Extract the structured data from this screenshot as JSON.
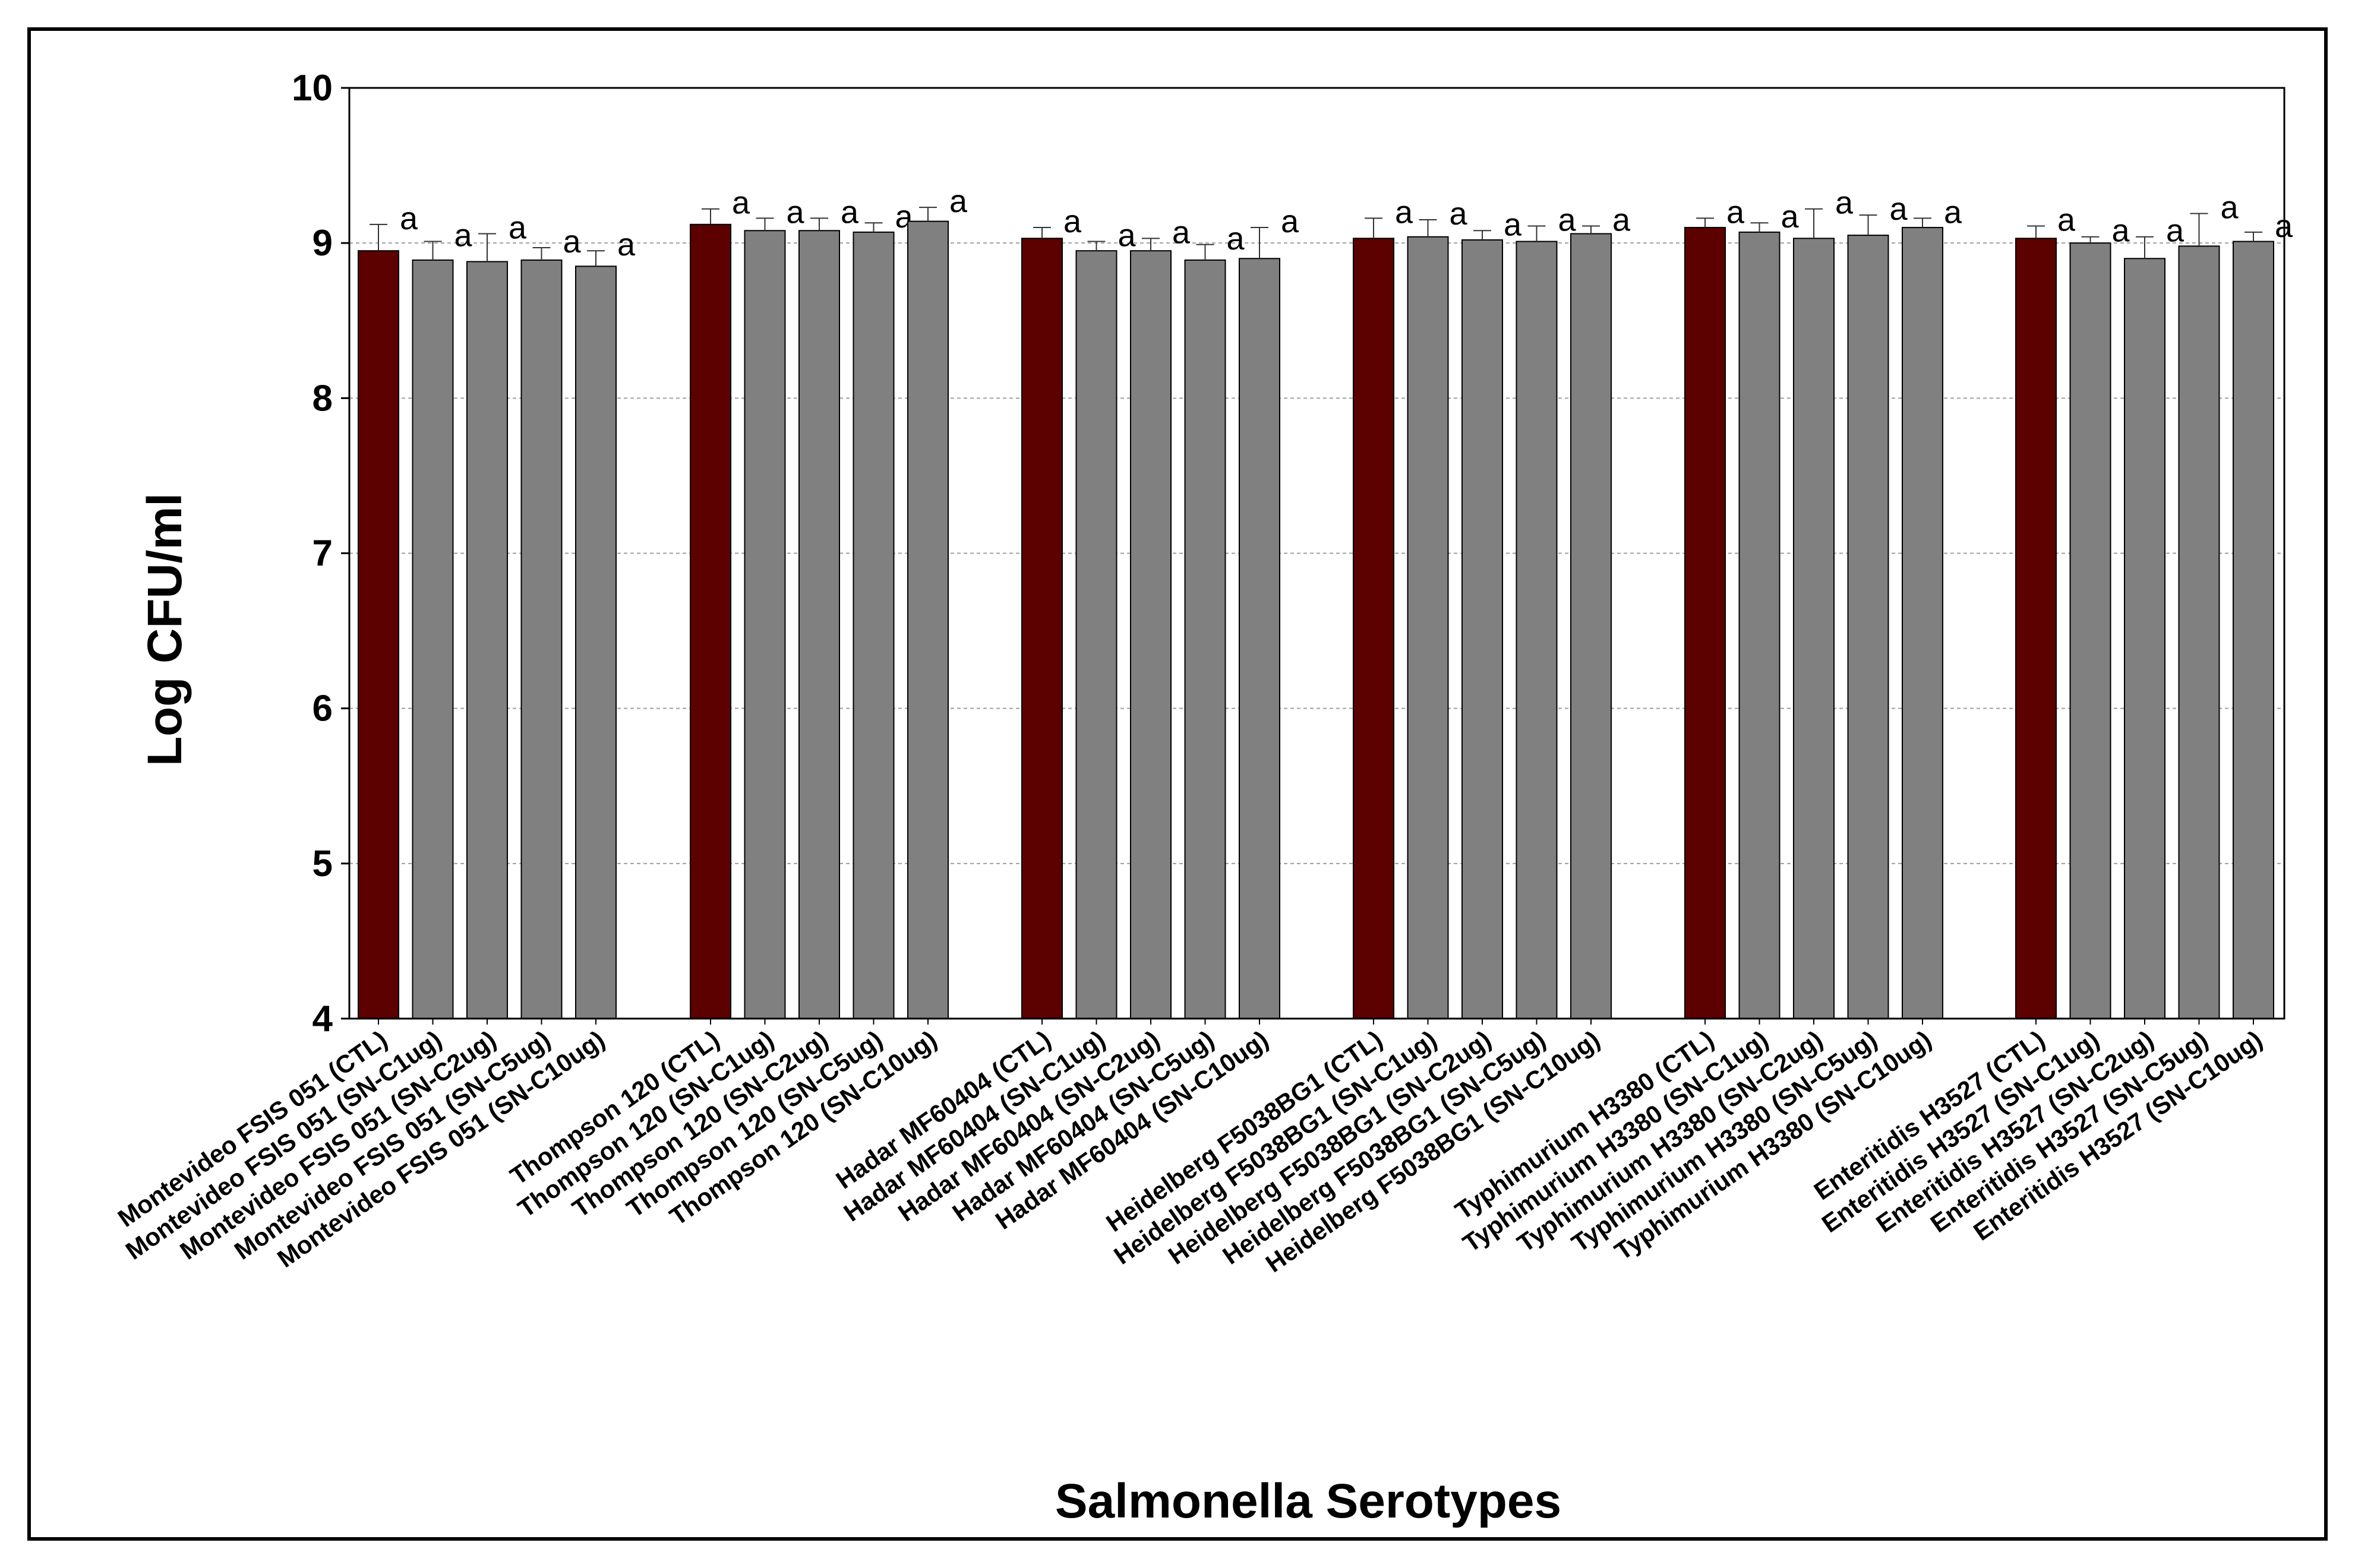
{
  "chart_data": {
    "type": "bar",
    "title": "",
    "xlabel": "Salmonella Serotypes",
    "ylabel": "Log CFU/ml",
    "ylim": [
      4,
      10
    ],
    "yticks": [
      "4",
      "5",
      "6",
      "7",
      "8",
      "9",
      "10"
    ],
    "grid": "horizontal dashed",
    "colors": {
      "control": "#5c0000",
      "treatment": "#808080",
      "grid": "#a0a0a0",
      "axis": "#000000"
    },
    "groups": [
      {
        "serotype": "Montevideo FSIS 051",
        "bars": [
          {
            "label": "Montevideo FSIS 051 (CTL)",
            "value": 8.95,
            "error": 0.17,
            "letter": "a",
            "kind": "control"
          },
          {
            "label": "Montevideo FSIS 051 (SN-C1ug)",
            "value": 8.89,
            "error": 0.12,
            "letter": "a",
            "kind": "treatment"
          },
          {
            "label": "Montevideo FSIS 051 (SN-C2ug)",
            "value": 8.88,
            "error": 0.18,
            "letter": "a",
            "kind": "treatment"
          },
          {
            "label": "Montevideo FSIS 051 (SN-C5ug)",
            "value": 8.89,
            "error": 0.08,
            "letter": "a",
            "kind": "treatment"
          },
          {
            "label": "Montevideo FSIS 051 (SN-C10ug)",
            "value": 8.85,
            "error": 0.1,
            "letter": "a",
            "kind": "treatment"
          }
        ]
      },
      {
        "serotype": "Thompson 120",
        "bars": [
          {
            "label": "Thompson 120 (CTL)",
            "value": 9.12,
            "error": 0.1,
            "letter": "a",
            "kind": "control"
          },
          {
            "label": "Thompson  120 (SN-C1ug)",
            "value": 9.08,
            "error": 0.08,
            "letter": "a",
            "kind": "treatment"
          },
          {
            "label": "Thompson 120 (SN-C2ug)",
            "value": 9.08,
            "error": 0.08,
            "letter": "a",
            "kind": "treatment"
          },
          {
            "label": "Thompson 120 (SN-C5ug)",
            "value": 9.07,
            "error": 0.06,
            "letter": "a",
            "kind": "treatment"
          },
          {
            "label": "Thompson 120 (SN-C10ug)",
            "value": 9.14,
            "error": 0.09,
            "letter": "a",
            "kind": "treatment"
          }
        ]
      },
      {
        "serotype": "Hadar MF60404",
        "bars": [
          {
            "label": "Hadar MF60404 (CTL)",
            "value": 9.03,
            "error": 0.07,
            "letter": "a",
            "kind": "control"
          },
          {
            "label": "Hadar MF60404 (SN-C1ug)",
            "value": 8.95,
            "error": 0.06,
            "letter": "a",
            "kind": "treatment"
          },
          {
            "label": "Hadar MF60404 (SN-C2ug)",
            "value": 8.95,
            "error": 0.08,
            "letter": "a",
            "kind": "treatment"
          },
          {
            "label": "Hadar MF60404 (SN-C5ug)",
            "value": 8.89,
            "error": 0.1,
            "letter": "a",
            "kind": "treatment"
          },
          {
            "label": "Hadar MF60404 (SN-C10ug)",
            "value": 8.9,
            "error": 0.2,
            "letter": "a",
            "kind": "treatment"
          }
        ]
      },
      {
        "serotype": "Heidelberg F5038BG1",
        "bars": [
          {
            "label": "Heidelberg F5038BG1 (CTL)",
            "value": 9.03,
            "error": 0.13,
            "letter": "a",
            "kind": "control"
          },
          {
            "label": "Heidelberg F5038BG1 (SN-C1ug)",
            "value": 9.04,
            "error": 0.11,
            "letter": "a",
            "kind": "treatment"
          },
          {
            "label": "Heidelberg F5038BG1 (SN-C2ug)",
            "value": 9.02,
            "error": 0.06,
            "letter": "a",
            "kind": "treatment"
          },
          {
            "label": "Heidelberg F5038BG1 (SN-C5ug)",
            "value": 9.01,
            "error": 0.1,
            "letter": "a",
            "kind": "treatment"
          },
          {
            "label": "Heidelberg F5038BG1 (SN-C10ug)",
            "value": 9.06,
            "error": 0.05,
            "letter": "a",
            "kind": "treatment"
          }
        ]
      },
      {
        "serotype": "Typhimurium H3380",
        "bars": [
          {
            "label": "Typhimurium H3380 (CTL)",
            "value": 9.1,
            "error": 0.06,
            "letter": "a",
            "kind": "control"
          },
          {
            "label": "Typhimurium H3380 (SN-C1ug)",
            "value": 9.07,
            "error": 0.06,
            "letter": "a",
            "kind": "treatment"
          },
          {
            "label": "Typhimurium H3380 (SN-C2ug)",
            "value": 9.03,
            "error": 0.19,
            "letter": "a",
            "kind": "treatment"
          },
          {
            "label": "Typhimurium H3380 (SN-C5ug)",
            "value": 9.05,
            "error": 0.13,
            "letter": "a",
            "kind": "treatment"
          },
          {
            "label": "Typhimurium H3380 (SN-C10ug)",
            "value": 9.1,
            "error": 0.06,
            "letter": "a",
            "kind": "treatment"
          }
        ]
      },
      {
        "serotype": "Enteritidis H3527",
        "bars": [
          {
            "label": "Enteritidis H3527 (CTL)",
            "value": 9.03,
            "error": 0.08,
            "letter": "a",
            "kind": "control"
          },
          {
            "label": "Enteritidis H3527 (SN-C1ug)",
            "value": 9.0,
            "error": 0.04,
            "letter": "a",
            "kind": "treatment"
          },
          {
            "label": "Enteritidis H3527 (SN-C2ug)",
            "value": 8.9,
            "error": 0.14,
            "letter": "a",
            "kind": "treatment"
          },
          {
            "label": "Enteritidis H3527 (SN-C5ug)",
            "value": 8.98,
            "error": 0.21,
            "letter": "a",
            "kind": "treatment"
          },
          {
            "label": "Enteritidis H3527 (SN-C10ug)",
            "value": 9.01,
            "error": 0.06,
            "letter": "a",
            "kind": "treatment"
          }
        ]
      }
    ]
  }
}
